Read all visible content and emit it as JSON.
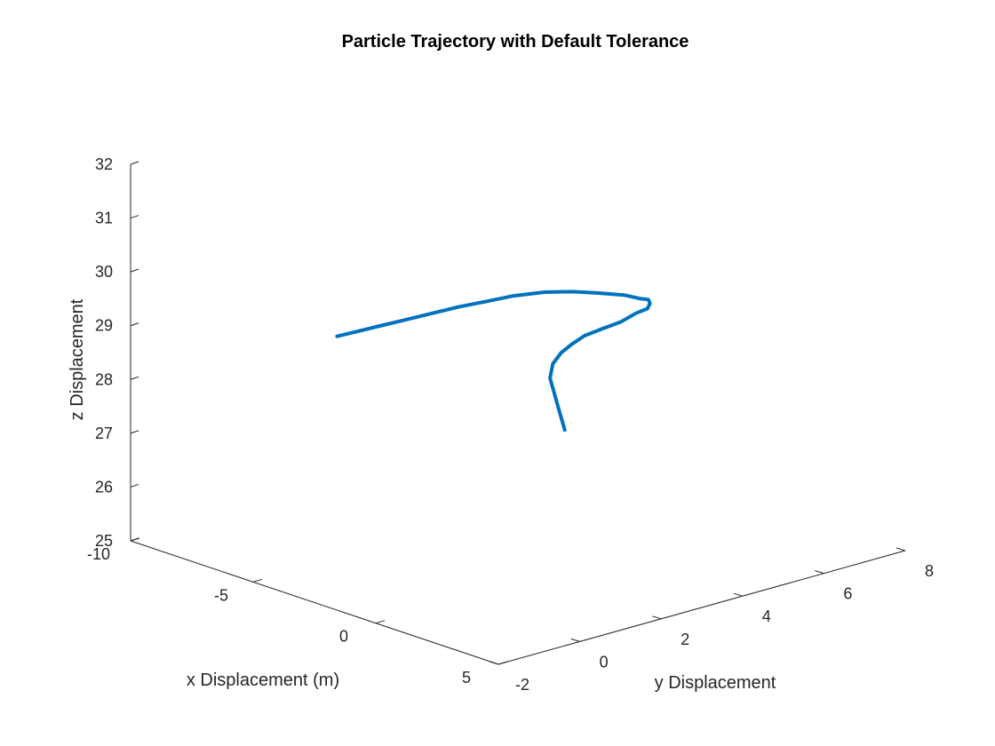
{
  "chart_data": {
    "type": "line",
    "projection": "3d",
    "title": "Particle Trajectory with Default Tolerance",
    "xlabel": "x Displacement (m)",
    "ylabel": "y Displacement",
    "zlabel": "z Displacement",
    "xlim": [
      -10,
      5
    ],
    "ylim": [
      -2,
      8
    ],
    "zlim": [
      25,
      32
    ],
    "x_ticks": [
      "-10",
      "-5",
      "0",
      "5"
    ],
    "y_ticks": [
      "-2",
      "0",
      "2",
      "4",
      "6",
      "8"
    ],
    "z_ticks": [
      "25",
      "26",
      "27",
      "28",
      "29",
      "30",
      "31",
      "32"
    ],
    "grid": false,
    "series": [
      {
        "color": "#0072bd",
        "points": [
          [
            -2.0,
            3.85,
            27.05
          ],
          [
            -2.55,
            4.0,
            27.41
          ],
          [
            -2.95,
            4.15,
            27.56
          ],
          [
            -3.35,
            4.3,
            27.71
          ],
          [
            -3.65,
            4.55,
            27.88
          ],
          [
            -3.8,
            4.85,
            28.0
          ],
          [
            -3.8,
            5.1,
            28.1
          ],
          [
            -3.6,
            5.3,
            28.25
          ],
          [
            -3.2,
            5.5,
            28.4
          ],
          [
            -2.6,
            5.6,
            28.6
          ],
          [
            -2.0,
            5.6,
            28.85
          ],
          [
            -1.2,
            5.4,
            29.1
          ],
          [
            -0.6,
            5.1,
            29.35
          ],
          [
            0.0,
            4.7,
            29.6
          ],
          [
            0.3,
            4.3,
            29.75
          ],
          [
            0.5,
            3.8,
            29.95
          ],
          [
            0.4,
            3.2,
            30.1
          ],
          [
            0.2,
            2.7,
            30.2
          ],
          [
            -0.1,
            2.2,
            30.25
          ],
          [
            -0.6,
            1.75,
            30.2
          ],
          [
            -1.1,
            1.35,
            30.1
          ],
          [
            -1.6,
            1.0,
            30.0
          ],
          [
            -2.2,
            0.7,
            29.85
          ],
          [
            -2.8,
            0.4,
            29.7
          ],
          [
            -3.4,
            0.15,
            29.55
          ],
          [
            -4.0,
            -0.1,
            29.4
          ],
          [
            -4.4,
            -0.3,
            29.3
          ]
        ]
      }
    ]
  }
}
